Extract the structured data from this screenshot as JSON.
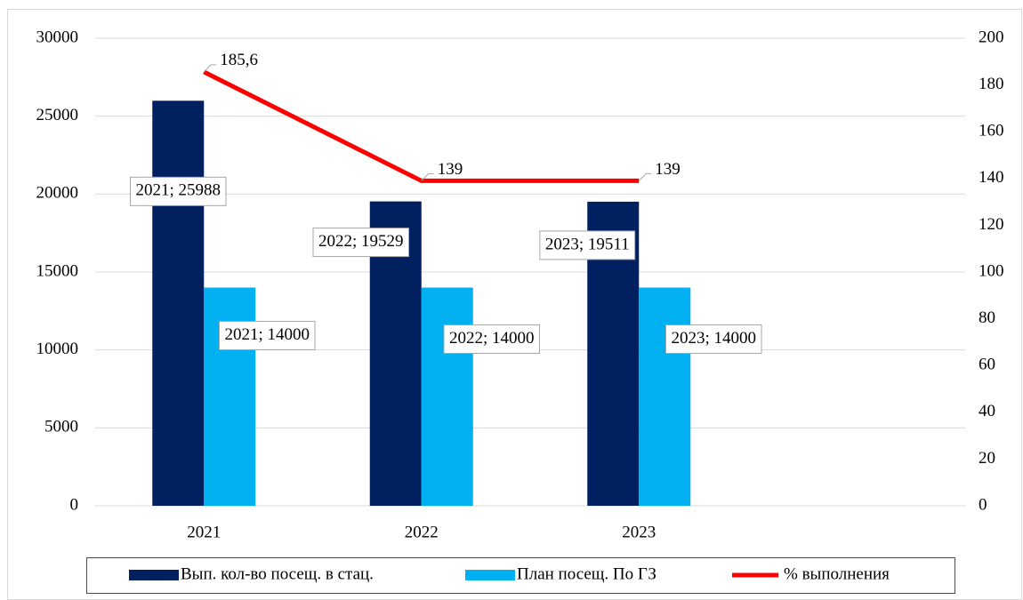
{
  "chart_data": {
    "type": "bar",
    "categories": [
      "2021",
      "2022",
      "2023",
      null
    ],
    "series": [
      {
        "name": "Вып. кол-во посещ. в стац.",
        "color": "#002060",
        "values": [
          25988,
          19529,
          19511,
          null
        ],
        "value_labels": [
          "2021; 25988",
          "2022; 19529",
          "2023; 19511",
          null
        ]
      },
      {
        "name": "План посещ. По ГЗ",
        "color": "#00b0f0",
        "values": [
          14000,
          14000,
          14000,
          null
        ],
        "value_labels": [
          "2021; 14000",
          "2022; 14000",
          "2023; 14000",
          null
        ]
      },
      {
        "name": "% выполнения",
        "color": "#ff0000",
        "type": "line",
        "axis": "y2",
        "values": [
          185.6,
          139,
          139,
          null
        ],
        "value_labels": [
          "185,6",
          "139",
          "139",
          null
        ]
      }
    ],
    "ylim": [
      0,
      30000
    ],
    "yticks": [
      0,
      5000,
      10000,
      15000,
      20000,
      25000,
      30000
    ],
    "y2lim": [
      0,
      200
    ],
    "y2ticks": [
      0,
      20,
      40,
      60,
      80,
      100,
      120,
      140,
      160,
      180,
      200
    ],
    "grid": true,
    "legend": "bottom"
  }
}
